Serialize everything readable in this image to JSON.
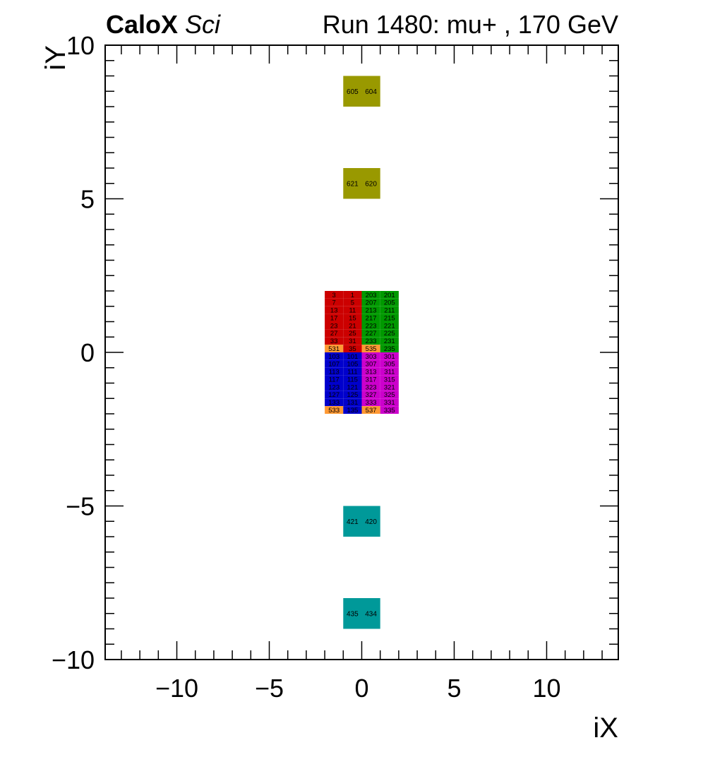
{
  "header": {
    "brand": "CaloX",
    "brand_sub": "Sci",
    "run_info": "Run 1480: mu+ , 170 GeV"
  },
  "chart_data": {
    "type": "heatmap",
    "title": "Run 1480: mu+ , 170 GeV",
    "xlabel": "iX",
    "ylabel": "iY",
    "xlim": [
      -13.875,
      13.875
    ],
    "ylim": [
      -10,
      10
    ],
    "xticks": [
      -10,
      -5,
      0,
      5,
      10
    ],
    "yticks": [
      -10,
      -5,
      0,
      5,
      10
    ],
    "xtick_labels": [
      "−10",
      "−5",
      "0",
      "5",
      "10"
    ],
    "ytick_labels": [
      "−10",
      "−5",
      "0",
      "5",
      "10"
    ],
    "grid": false,
    "colors": {
      "red": "#cc0000",
      "green": "#009900",
      "blue": "#0000cc",
      "magenta": "#cc00cc",
      "orange": "#ff9933",
      "olive": "#999900",
      "teal": "#009999"
    },
    "cells": [
      {
        "x0": -1,
        "x1": 0,
        "y0": 8,
        "y1": 9,
        "color": "olive",
        "label": "605"
      },
      {
        "x0": 0,
        "x1": 1,
        "y0": 8,
        "y1": 9,
        "color": "olive",
        "label": "604"
      },
      {
        "x0": -1,
        "x1": 0,
        "y0": 5,
        "y1": 6,
        "color": "olive",
        "label": "621"
      },
      {
        "x0": 0,
        "x1": 1,
        "y0": 5,
        "y1": 6,
        "color": "olive",
        "label": "620"
      },
      {
        "x0": -1,
        "x1": 0,
        "y0": -6,
        "y1": -5,
        "color": "teal",
        "label": "421"
      },
      {
        "x0": 0,
        "x1": 1,
        "y0": -6,
        "y1": -5,
        "color": "teal",
        "label": "420"
      },
      {
        "x0": -1,
        "x1": 0,
        "y0": -9,
        "y1": -8,
        "color": "teal",
        "label": "435"
      },
      {
        "x0": 0,
        "x1": 1,
        "y0": -9,
        "y1": -8,
        "color": "teal",
        "label": "434"
      },
      {
        "x0": -2,
        "x1": -1,
        "y0": 1.75,
        "y1": 2.0,
        "color": "red",
        "label": "3"
      },
      {
        "x0": -1,
        "x1": 0,
        "y0": 1.75,
        "y1": 2.0,
        "color": "red",
        "label": "1"
      },
      {
        "x0": -2,
        "x1": -1,
        "y0": 1.5,
        "y1": 1.75,
        "color": "red",
        "label": "7"
      },
      {
        "x0": -1,
        "x1": 0,
        "y0": 1.5,
        "y1": 1.75,
        "color": "red",
        "label": "5"
      },
      {
        "x0": -2,
        "x1": -1,
        "y0": 1.25,
        "y1": 1.5,
        "color": "red",
        "label": "13"
      },
      {
        "x0": -1,
        "x1": 0,
        "y0": 1.25,
        "y1": 1.5,
        "color": "red",
        "label": "11"
      },
      {
        "x0": -2,
        "x1": -1,
        "y0": 1.0,
        "y1": 1.25,
        "color": "red",
        "label": "17"
      },
      {
        "x0": -1,
        "x1": 0,
        "y0": 1.0,
        "y1": 1.25,
        "color": "red",
        "label": "15"
      },
      {
        "x0": -2,
        "x1": -1,
        "y0": 0.75,
        "y1": 1.0,
        "color": "red",
        "label": "23"
      },
      {
        "x0": -1,
        "x1": 0,
        "y0": 0.75,
        "y1": 1.0,
        "color": "red",
        "label": "21"
      },
      {
        "x0": -2,
        "x1": -1,
        "y0": 0.5,
        "y1": 0.75,
        "color": "red",
        "label": "27"
      },
      {
        "x0": -1,
        "x1": 0,
        "y0": 0.5,
        "y1": 0.75,
        "color": "red",
        "label": "25"
      },
      {
        "x0": -2,
        "x1": -1,
        "y0": 0.25,
        "y1": 0.5,
        "color": "red",
        "label": "33"
      },
      {
        "x0": -1,
        "x1": 0,
        "y0": 0.25,
        "y1": 0.5,
        "color": "red",
        "label": "31"
      },
      {
        "x0": -2,
        "x1": -1,
        "y0": 0.0,
        "y1": 0.25,
        "color": "orange",
        "label": "531"
      },
      {
        "x0": -1,
        "x1": 0,
        "y0": 0.0,
        "y1": 0.25,
        "color": "red",
        "label": "35"
      },
      {
        "x0": 0,
        "x1": 1,
        "y0": 1.75,
        "y1": 2.0,
        "color": "green",
        "label": "203"
      },
      {
        "x0": 1,
        "x1": 2,
        "y0": 1.75,
        "y1": 2.0,
        "color": "green",
        "label": "201"
      },
      {
        "x0": 0,
        "x1": 1,
        "y0": 1.5,
        "y1": 1.75,
        "color": "green",
        "label": "207"
      },
      {
        "x0": 1,
        "x1": 2,
        "y0": 1.5,
        "y1": 1.75,
        "color": "green",
        "label": "205"
      },
      {
        "x0": 0,
        "x1": 1,
        "y0": 1.25,
        "y1": 1.5,
        "color": "green",
        "label": "213"
      },
      {
        "x0": 1,
        "x1": 2,
        "y0": 1.25,
        "y1": 1.5,
        "color": "green",
        "label": "211"
      },
      {
        "x0": 0,
        "x1": 1,
        "y0": 1.0,
        "y1": 1.25,
        "color": "green",
        "label": "217"
      },
      {
        "x0": 1,
        "x1": 2,
        "y0": 1.0,
        "y1": 1.25,
        "color": "green",
        "label": "215"
      },
      {
        "x0": 0,
        "x1": 1,
        "y0": 0.75,
        "y1": 1.0,
        "color": "green",
        "label": "223"
      },
      {
        "x0": 1,
        "x1": 2,
        "y0": 0.75,
        "y1": 1.0,
        "color": "green",
        "label": "221"
      },
      {
        "x0": 0,
        "x1": 1,
        "y0": 0.5,
        "y1": 0.75,
        "color": "green",
        "label": "227"
      },
      {
        "x0": 1,
        "x1": 2,
        "y0": 0.5,
        "y1": 0.75,
        "color": "green",
        "label": "225"
      },
      {
        "x0": 0,
        "x1": 1,
        "y0": 0.25,
        "y1": 0.5,
        "color": "green",
        "label": "233"
      },
      {
        "x0": 1,
        "x1": 2,
        "y0": 0.25,
        "y1": 0.5,
        "color": "green",
        "label": "231"
      },
      {
        "x0": 0,
        "x1": 1,
        "y0": 0.0,
        "y1": 0.25,
        "color": "orange",
        "label": "535"
      },
      {
        "x0": 1,
        "x1": 2,
        "y0": 0.0,
        "y1": 0.25,
        "color": "green",
        "label": "235"
      },
      {
        "x0": -2,
        "x1": -1,
        "y0": -0.25,
        "y1": 0.0,
        "color": "blue",
        "label": "103"
      },
      {
        "x0": -1,
        "x1": 0,
        "y0": -0.25,
        "y1": 0.0,
        "color": "blue",
        "label": "101"
      },
      {
        "x0": -2,
        "x1": -1,
        "y0": -0.5,
        "y1": -0.25,
        "color": "blue",
        "label": "107"
      },
      {
        "x0": -1,
        "x1": 0,
        "y0": -0.5,
        "y1": -0.25,
        "color": "blue",
        "label": "105"
      },
      {
        "x0": -2,
        "x1": -1,
        "y0": -0.75,
        "y1": -0.5,
        "color": "blue",
        "label": "113"
      },
      {
        "x0": -1,
        "x1": 0,
        "y0": -0.75,
        "y1": -0.5,
        "color": "blue",
        "label": "111"
      },
      {
        "x0": -2,
        "x1": -1,
        "y0": -1.0,
        "y1": -0.75,
        "color": "blue",
        "label": "117"
      },
      {
        "x0": -1,
        "x1": 0,
        "y0": -1.0,
        "y1": -0.75,
        "color": "blue",
        "label": "115"
      },
      {
        "x0": -2,
        "x1": -1,
        "y0": -1.25,
        "y1": -1.0,
        "color": "blue",
        "label": "123"
      },
      {
        "x0": -1,
        "x1": 0,
        "y0": -1.25,
        "y1": -1.0,
        "color": "blue",
        "label": "121"
      },
      {
        "x0": -2,
        "x1": -1,
        "y0": -1.5,
        "y1": -1.25,
        "color": "blue",
        "label": "127"
      },
      {
        "x0": -1,
        "x1": 0,
        "y0": -1.5,
        "y1": -1.25,
        "color": "blue",
        "label": "125"
      },
      {
        "x0": -2,
        "x1": -1,
        "y0": -1.75,
        "y1": -1.5,
        "color": "blue",
        "label": "133"
      },
      {
        "x0": -1,
        "x1": 0,
        "y0": -1.75,
        "y1": -1.5,
        "color": "blue",
        "label": "131"
      },
      {
        "x0": -2,
        "x1": -1,
        "y0": -2.0,
        "y1": -1.75,
        "color": "orange",
        "label": "533"
      },
      {
        "x0": -1,
        "x1": 0,
        "y0": -2.0,
        "y1": -1.75,
        "color": "blue",
        "label": "135"
      },
      {
        "x0": 0,
        "x1": 1,
        "y0": -0.25,
        "y1": 0.0,
        "color": "magenta",
        "label": "303"
      },
      {
        "x0": 1,
        "x1": 2,
        "y0": -0.25,
        "y1": 0.0,
        "color": "magenta",
        "label": "301"
      },
      {
        "x0": 0,
        "x1": 1,
        "y0": -0.5,
        "y1": -0.25,
        "color": "magenta",
        "label": "307"
      },
      {
        "x0": 1,
        "x1": 2,
        "y0": -0.5,
        "y1": -0.25,
        "color": "magenta",
        "label": "305"
      },
      {
        "x0": 0,
        "x1": 1,
        "y0": -0.75,
        "y1": -0.5,
        "color": "magenta",
        "label": "313"
      },
      {
        "x0": 1,
        "x1": 2,
        "y0": -0.75,
        "y1": -0.5,
        "color": "magenta",
        "label": "311"
      },
      {
        "x0": 0,
        "x1": 1,
        "y0": -1.0,
        "y1": -0.75,
        "color": "magenta",
        "label": "317"
      },
      {
        "x0": 1,
        "x1": 2,
        "y0": -1.0,
        "y1": -0.75,
        "color": "magenta",
        "label": "315"
      },
      {
        "x0": 0,
        "x1": 1,
        "y0": -1.25,
        "y1": -1.0,
        "color": "magenta",
        "label": "323"
      },
      {
        "x0": 1,
        "x1": 2,
        "y0": -1.25,
        "y1": -1.0,
        "color": "magenta",
        "label": "321"
      },
      {
        "x0": 0,
        "x1": 1,
        "y0": -1.5,
        "y1": -1.25,
        "color": "magenta",
        "label": "327"
      },
      {
        "x0": 1,
        "x1": 2,
        "y0": -1.5,
        "y1": -1.25,
        "color": "magenta",
        "label": "325"
      },
      {
        "x0": 0,
        "x1": 1,
        "y0": -1.75,
        "y1": -1.5,
        "color": "magenta",
        "label": "333"
      },
      {
        "x0": 1,
        "x1": 2,
        "y0": -1.75,
        "y1": -1.5,
        "color": "magenta",
        "label": "331"
      },
      {
        "x0": 0,
        "x1": 1,
        "y0": -2.0,
        "y1": -1.75,
        "color": "orange",
        "label": "537"
      },
      {
        "x0": 1,
        "x1": 2,
        "y0": -2.0,
        "y1": -1.75,
        "color": "magenta",
        "label": "335"
      }
    ]
  }
}
